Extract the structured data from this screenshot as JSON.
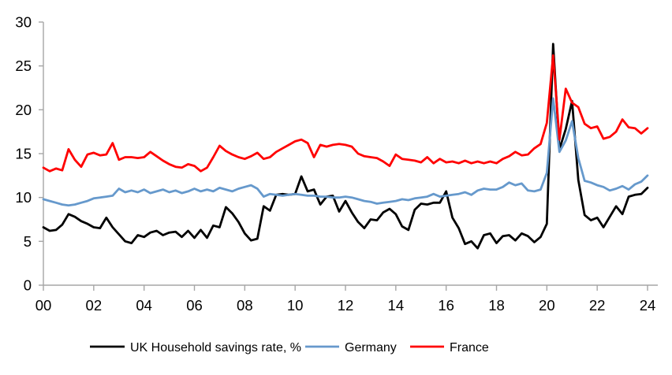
{
  "chart_data": {
    "type": "line",
    "title": "",
    "x_axis": {
      "label": "",
      "tick_labels": [
        "00",
        "02",
        "04",
        "06",
        "08",
        "10",
        "12",
        "14",
        "16",
        "18",
        "20",
        "22",
        "24"
      ],
      "start_year": 2000,
      "end_year": 2024,
      "frequency": "quarterly"
    },
    "y_axis": {
      "label": "",
      "tick_values": [
        0,
        5,
        10,
        15,
        20,
        25,
        30
      ],
      "tick_labels": [
        "0",
        "5",
        "10",
        "15",
        "20",
        "25",
        "30"
      ],
      "min": 0,
      "max": 30
    },
    "grid": "off",
    "axis_color": "#A6A6A6",
    "text_color": "#000000",
    "legend": {
      "position": "bottom"
    },
    "series": [
      {
        "name": "UK Household savings rate, %",
        "color": "#000000",
        "values": [
          6.6,
          6.2,
          6.3,
          6.9,
          8.1,
          7.8,
          7.3,
          7.0,
          6.6,
          6.5,
          7.7,
          6.6,
          5.8,
          5.0,
          4.8,
          5.7,
          5.5,
          6.0,
          6.2,
          5.7,
          6.0,
          6.1,
          5.5,
          6.2,
          5.4,
          6.3,
          5.4,
          6.8,
          6.6,
          8.9,
          8.2,
          7.2,
          5.9,
          5.1,
          5.3,
          9.0,
          8.5,
          10.3,
          10.4,
          10.3,
          10.4,
          12.4,
          10.7,
          10.9,
          9.2,
          10.1,
          10.2,
          8.4,
          9.6,
          8.3,
          7.2,
          6.5,
          7.5,
          7.4,
          8.3,
          8.7,
          8.1,
          6.7,
          6.3,
          8.6,
          9.3,
          9.2,
          9.4,
          9.4,
          10.7,
          7.7,
          6.5,
          4.7,
          5.0,
          4.2,
          5.7,
          5.9,
          4.8,
          5.6,
          5.7,
          5.1,
          5.9,
          5.6,
          4.9,
          5.5,
          7.0,
          27.5,
          15.5,
          17.8,
          21.0,
          12.0,
          8.0,
          7.4,
          7.7,
          6.6,
          7.8,
          9.0,
          8.1,
          10.1,
          10.3,
          10.4,
          11.1
        ]
      },
      {
        "name": "Germany",
        "color": "#6699CC",
        "values": [
          9.8,
          9.6,
          9.4,
          9.2,
          9.1,
          9.2,
          9.4,
          9.6,
          9.9,
          10.0,
          10.1,
          10.2,
          11.0,
          10.6,
          10.8,
          10.6,
          10.9,
          10.5,
          10.7,
          10.9,
          10.6,
          10.8,
          10.5,
          10.7,
          11.0,
          10.7,
          10.9,
          10.7,
          11.1,
          10.9,
          10.7,
          11.0,
          11.2,
          11.4,
          11.0,
          10.1,
          10.4,
          10.3,
          10.2,
          10.3,
          10.4,
          10.3,
          10.2,
          10.2,
          10.1,
          10.1,
          10.0,
          10.0,
          10.1,
          10.0,
          9.8,
          9.6,
          9.5,
          9.3,
          9.4,
          9.5,
          9.6,
          9.8,
          9.7,
          9.9,
          10.0,
          10.1,
          10.4,
          10.1,
          10.2,
          10.3,
          10.4,
          10.6,
          10.3,
          10.8,
          11.0,
          10.9,
          10.9,
          11.2,
          11.7,
          11.4,
          11.6,
          10.8,
          10.7,
          10.9,
          12.8,
          21.3,
          15.2,
          16.5,
          18.7,
          14.5,
          11.9,
          11.7,
          11.4,
          11.2,
          10.8,
          11.0,
          11.3,
          10.9,
          11.5,
          11.8,
          12.5
        ]
      },
      {
        "name": "France",
        "color": "#FF0000",
        "values": [
          13.4,
          13.0,
          13.3,
          13.1,
          15.5,
          14.3,
          13.5,
          14.9,
          15.1,
          14.8,
          14.9,
          16.2,
          14.3,
          14.6,
          14.6,
          14.5,
          14.6,
          15.2,
          14.7,
          14.2,
          13.8,
          13.5,
          13.4,
          13.8,
          13.6,
          13.0,
          13.4,
          14.6,
          15.9,
          15.3,
          14.9,
          14.6,
          14.4,
          14.7,
          15.1,
          14.4,
          14.6,
          15.2,
          15.6,
          16.0,
          16.4,
          16.6,
          16.2,
          14.6,
          16.0,
          15.8,
          16.0,
          16.1,
          16.0,
          15.8,
          15.0,
          14.7,
          14.6,
          14.5,
          14.1,
          13.6,
          14.9,
          14.4,
          14.3,
          14.2,
          14.0,
          14.6,
          13.9,
          14.4,
          14.0,
          14.1,
          13.9,
          14.2,
          13.9,
          14.1,
          13.9,
          14.1,
          13.9,
          14.4,
          14.7,
          15.2,
          14.8,
          14.9,
          15.6,
          16.1,
          18.5,
          26.2,
          16.6,
          22.4,
          20.8,
          20.3,
          18.4,
          17.9,
          18.1,
          16.7,
          16.9,
          17.5,
          18.9,
          18.0,
          17.9,
          17.3,
          17.9
        ]
      }
    ]
  }
}
